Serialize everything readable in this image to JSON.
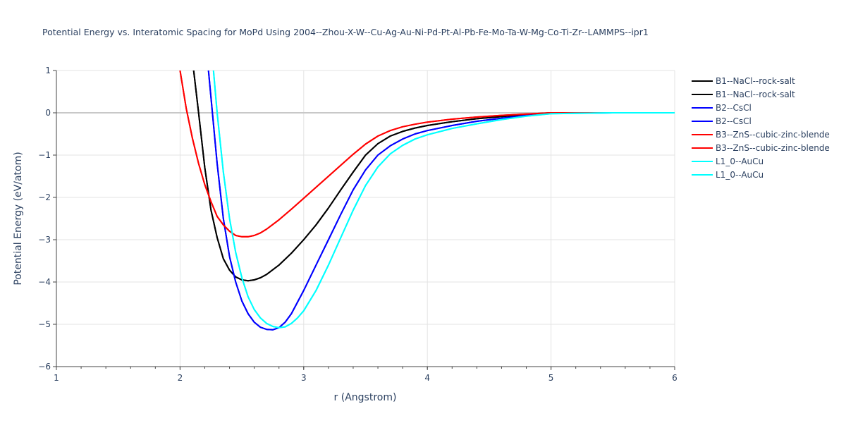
{
  "chart_data": {
    "type": "line",
    "title": "Potential Energy vs. Interatomic Spacing for MoPd Using 2004--Zhou-X-W--Cu-Ag-Au-Ni-Pd-Pt-Al-Pb-Fe-Mo-Ta-W-Mg-Co-Ti-Zr--LAMMPS--ipr1",
    "xlabel": "r (Angstrom)",
    "ylabel": "Potential Energy (eV/atom)",
    "xlim": [
      1,
      6
    ],
    "ylim": [
      -6,
      1
    ],
    "xticks": [
      "1",
      "2",
      "3",
      "4",
      "5",
      "6"
    ],
    "yticks": [
      "1",
      "0",
      "−1",
      "−2",
      "−3",
      "−4",
      "−5",
      "−6"
    ],
    "grid": true,
    "legend_position": "top-right outside",
    "series": [
      {
        "name": "B1--NaCl--rock-salt",
        "color": "#000000",
        "x": [
          2.11,
          2.15,
          2.2,
          2.25,
          2.3,
          2.35,
          2.4,
          2.45,
          2.5,
          2.55,
          2.6,
          2.65,
          2.7,
          2.8,
          2.9,
          3.0,
          3.1,
          3.2,
          3.3,
          3.4,
          3.5,
          3.6,
          3.7,
          3.8,
          3.9,
          4.0,
          4.2,
          4.4,
          4.6,
          4.8,
          5.0,
          5.5,
          6.0
        ],
        "y": [
          1,
          0.0,
          -1.3,
          -2.3,
          -2.95,
          -3.45,
          -3.72,
          -3.88,
          -3.95,
          -3.97,
          -3.95,
          -3.9,
          -3.82,
          -3.6,
          -3.32,
          -3.0,
          -2.65,
          -2.25,
          -1.82,
          -1.4,
          -1.0,
          -0.73,
          -0.55,
          -0.44,
          -0.36,
          -0.3,
          -0.21,
          -0.14,
          -0.09,
          -0.04,
          0,
          0,
          0
        ]
      },
      {
        "name": "B1--NaCl--rock-salt",
        "color": "#000000",
        "same_as": 0
      },
      {
        "name": "B2--CsCl",
        "color": "#0000ff",
        "x": [
          2.23,
          2.3,
          2.35,
          2.4,
          2.45,
          2.5,
          2.55,
          2.6,
          2.65,
          2.7,
          2.75,
          2.8,
          2.85,
          2.9,
          3.0,
          3.1,
          3.2,
          3.3,
          3.4,
          3.5,
          3.6,
          3.7,
          3.8,
          3.9,
          4.0,
          4.2,
          4.4,
          4.6,
          4.8,
          5.0,
          5.5,
          6.0
        ],
        "y": [
          1,
          -1.2,
          -2.5,
          -3.4,
          -4.0,
          -4.45,
          -4.75,
          -4.95,
          -5.07,
          -5.12,
          -5.13,
          -5.08,
          -4.95,
          -4.75,
          -4.2,
          -3.6,
          -3.0,
          -2.4,
          -1.82,
          -1.35,
          -1.0,
          -0.78,
          -0.62,
          -0.5,
          -0.42,
          -0.3,
          -0.2,
          -0.13,
          -0.06,
          -0.01,
          0,
          0
        ]
      },
      {
        "name": "B2--CsCl",
        "color": "#0000ff",
        "same_as": 2
      },
      {
        "name": "B3--ZnS--cubic-zinc-blende",
        "color": "#ff0000",
        "x": [
          2.0,
          2.05,
          2.1,
          2.15,
          2.2,
          2.25,
          2.3,
          2.35,
          2.4,
          2.45,
          2.5,
          2.55,
          2.6,
          2.65,
          2.7,
          2.8,
          2.9,
          3.0,
          3.1,
          3.2,
          3.3,
          3.4,
          3.5,
          3.6,
          3.7,
          3.8,
          3.9,
          4.0,
          4.2,
          4.4,
          4.6,
          4.8,
          5.0,
          5.5,
          6.0
        ],
        "y": [
          1.0,
          0.1,
          -0.6,
          -1.2,
          -1.7,
          -2.1,
          -2.45,
          -2.65,
          -2.8,
          -2.9,
          -2.93,
          -2.93,
          -2.9,
          -2.84,
          -2.75,
          -2.53,
          -2.28,
          -2.02,
          -1.76,
          -1.5,
          -1.24,
          -0.98,
          -0.74,
          -0.55,
          -0.42,
          -0.33,
          -0.27,
          -0.22,
          -0.15,
          -0.1,
          -0.06,
          -0.03,
          0,
          0,
          0
        ]
      },
      {
        "name": "B3--ZnS--cubic-zinc-blende",
        "color": "#ff0000",
        "same_as": 4
      },
      {
        "name": "L1_0--AuCu",
        "color": "#00ffff",
        "x": [
          2.27,
          2.3,
          2.35,
          2.4,
          2.45,
          2.5,
          2.55,
          2.6,
          2.65,
          2.7,
          2.75,
          2.8,
          2.85,
          2.9,
          2.95,
          3.0,
          3.1,
          3.2,
          3.3,
          3.4,
          3.5,
          3.6,
          3.7,
          3.8,
          3.9,
          4.0,
          4.2,
          4.4,
          4.6,
          4.8,
          5.0,
          5.5,
          6.0
        ],
        "y": [
          1,
          0.0,
          -1.4,
          -2.5,
          -3.3,
          -3.9,
          -4.35,
          -4.65,
          -4.85,
          -4.98,
          -5.05,
          -5.08,
          -5.06,
          -4.98,
          -4.85,
          -4.68,
          -4.2,
          -3.6,
          -2.95,
          -2.3,
          -1.72,
          -1.28,
          -0.97,
          -0.77,
          -0.62,
          -0.52,
          -0.37,
          -0.26,
          -0.16,
          -0.08,
          -0.02,
          0,
          0
        ]
      },
      {
        "name": "L1_0--AuCu",
        "color": "#00ffff",
        "same_as": 6
      }
    ]
  }
}
